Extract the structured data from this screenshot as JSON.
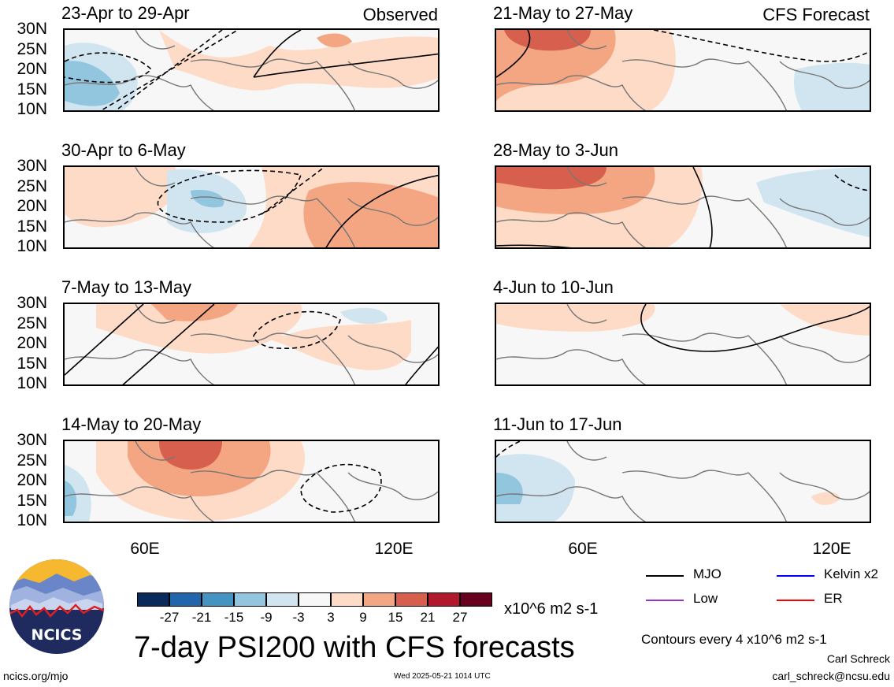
{
  "chart_data": {
    "type": "heatmap",
    "title": "7-day PSI200 with CFS forecasts",
    "units": "x10^6 m2 s-1",
    "contour_note": "Contours every 4 x10^6 m2 s-1",
    "y_ticks": [
      "30N",
      "25N",
      "20N",
      "15N",
      "10N"
    ],
    "x_ticks": [
      "60E",
      "120E"
    ],
    "colorbar_labels": [
      "-27",
      "-21",
      "-15",
      "-9",
      "-3",
      "3",
      "9",
      "15",
      "21",
      "27"
    ],
    "colorbar_colors": [
      "#0b2a5c",
      "#2166ac",
      "#4393c3",
      "#92c5de",
      "#d1e5f0",
      "#f7f7f7",
      "#fddbc7",
      "#f4a582",
      "#d6604d",
      "#b2182b",
      "#67001f"
    ],
    "panels_left_label": "Observed",
    "panels_right_label": "CFS Forecast",
    "panels": [
      {
        "title": "23-Apr to 29-Apr",
        "col": 0,
        "row": 0
      },
      {
        "title": "30-Apr to 6-May",
        "col": 0,
        "row": 1
      },
      {
        "title": "7-May to 13-May",
        "col": 0,
        "row": 2
      },
      {
        "title": "14-May to 20-May",
        "col": 0,
        "row": 3
      },
      {
        "title": "21-May to 27-May",
        "col": 1,
        "row": 0
      },
      {
        "title": "28-May to 3-Jun",
        "col": 1,
        "row": 1
      },
      {
        "title": "4-Jun to 10-Jun",
        "col": 1,
        "row": 2
      },
      {
        "title": "11-Jun to 17-Jun",
        "col": 1,
        "row": 3
      }
    ],
    "legend": [
      {
        "name": "MJO",
        "color": "#000000"
      },
      {
        "name": "Kelvin x2",
        "color": "#0000ff"
      },
      {
        "name": "Low",
        "color": "#9933cc"
      },
      {
        "name": "ER",
        "color": "#ff0000"
      }
    ]
  },
  "logo_text": "NCICS",
  "footer": {
    "url": "ncics.org/mjo",
    "timestamp": "Wed 2025-05-21 1014 UTC",
    "author": "Carl Schreck",
    "email": "carl_schreck@ncsu.edu"
  }
}
